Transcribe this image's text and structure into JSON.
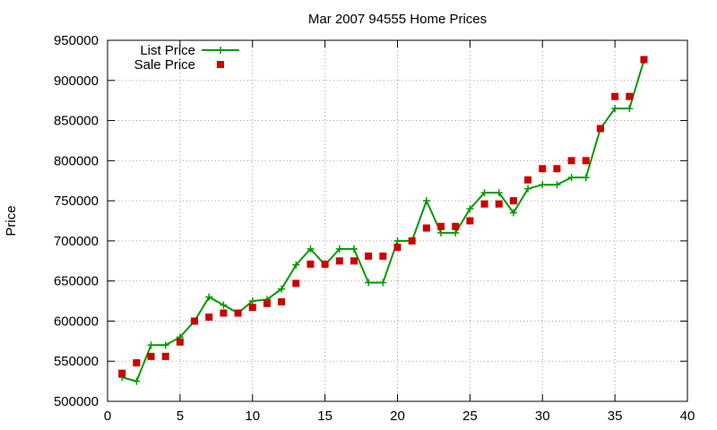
{
  "chart_data": {
    "type": "line",
    "title": "Mar 2007 94555 Home Prices",
    "xlabel": "",
    "ylabel": "Price",
    "xlim": [
      0,
      40
    ],
    "ylim": [
      500000,
      950000
    ],
    "x_ticks": [
      "0",
      "5",
      "10",
      "15",
      "20",
      "25",
      "30",
      "35",
      "40"
    ],
    "y_ticks": [
      "500000",
      "550000",
      "600000",
      "650000",
      "700000",
      "750000",
      "800000",
      "850000",
      "900000",
      "950000"
    ],
    "grid": true,
    "legend_position": "top-left",
    "series": [
      {
        "name": "List Price",
        "style": "line-with-plus-markers",
        "color": "#009900",
        "x": [
          1,
          2,
          3,
          4,
          5,
          6,
          7,
          8,
          9,
          10,
          11,
          12,
          13,
          14,
          15,
          16,
          17,
          18,
          19,
          20,
          21,
          22,
          23,
          24,
          25,
          26,
          27,
          28,
          29,
          30,
          31,
          32,
          33,
          34,
          35,
          36,
          37
        ],
        "values": [
          530000,
          525000,
          570000,
          570000,
          580000,
          600000,
          630000,
          620000,
          610000,
          625000,
          627000,
          640000,
          670000,
          690000,
          670000,
          690000,
          690000,
          648000,
          648000,
          700000,
          700000,
          750000,
          710000,
          710000,
          740000,
          760000,
          760000,
          735000,
          765000,
          770000,
          770000,
          779000,
          779000,
          840000,
          865000,
          865000,
          925000
        ]
      },
      {
        "name": "Sale Price",
        "style": "square-markers",
        "color": "#cc0000",
        "x": [
          1,
          2,
          3,
          4,
          5,
          6,
          7,
          8,
          9,
          10,
          11,
          12,
          13,
          14,
          15,
          16,
          17,
          18,
          19,
          20,
          21,
          22,
          23,
          24,
          25,
          26,
          27,
          28,
          29,
          30,
          31,
          32,
          33,
          34,
          35,
          36,
          37
        ],
        "values": [
          535000,
          548000,
          556000,
          556000,
          574000,
          600000,
          605000,
          610000,
          610000,
          617000,
          622000,
          624000,
          647000,
          671000,
          671000,
          675000,
          675000,
          681000,
          681000,
          692000,
          700000,
          716000,
          718000,
          718000,
          725000,
          746000,
          746000,
          750000,
          776000,
          790000,
          790000,
          800000,
          800000,
          840000,
          880000,
          880000,
          926000
        ]
      }
    ]
  }
}
